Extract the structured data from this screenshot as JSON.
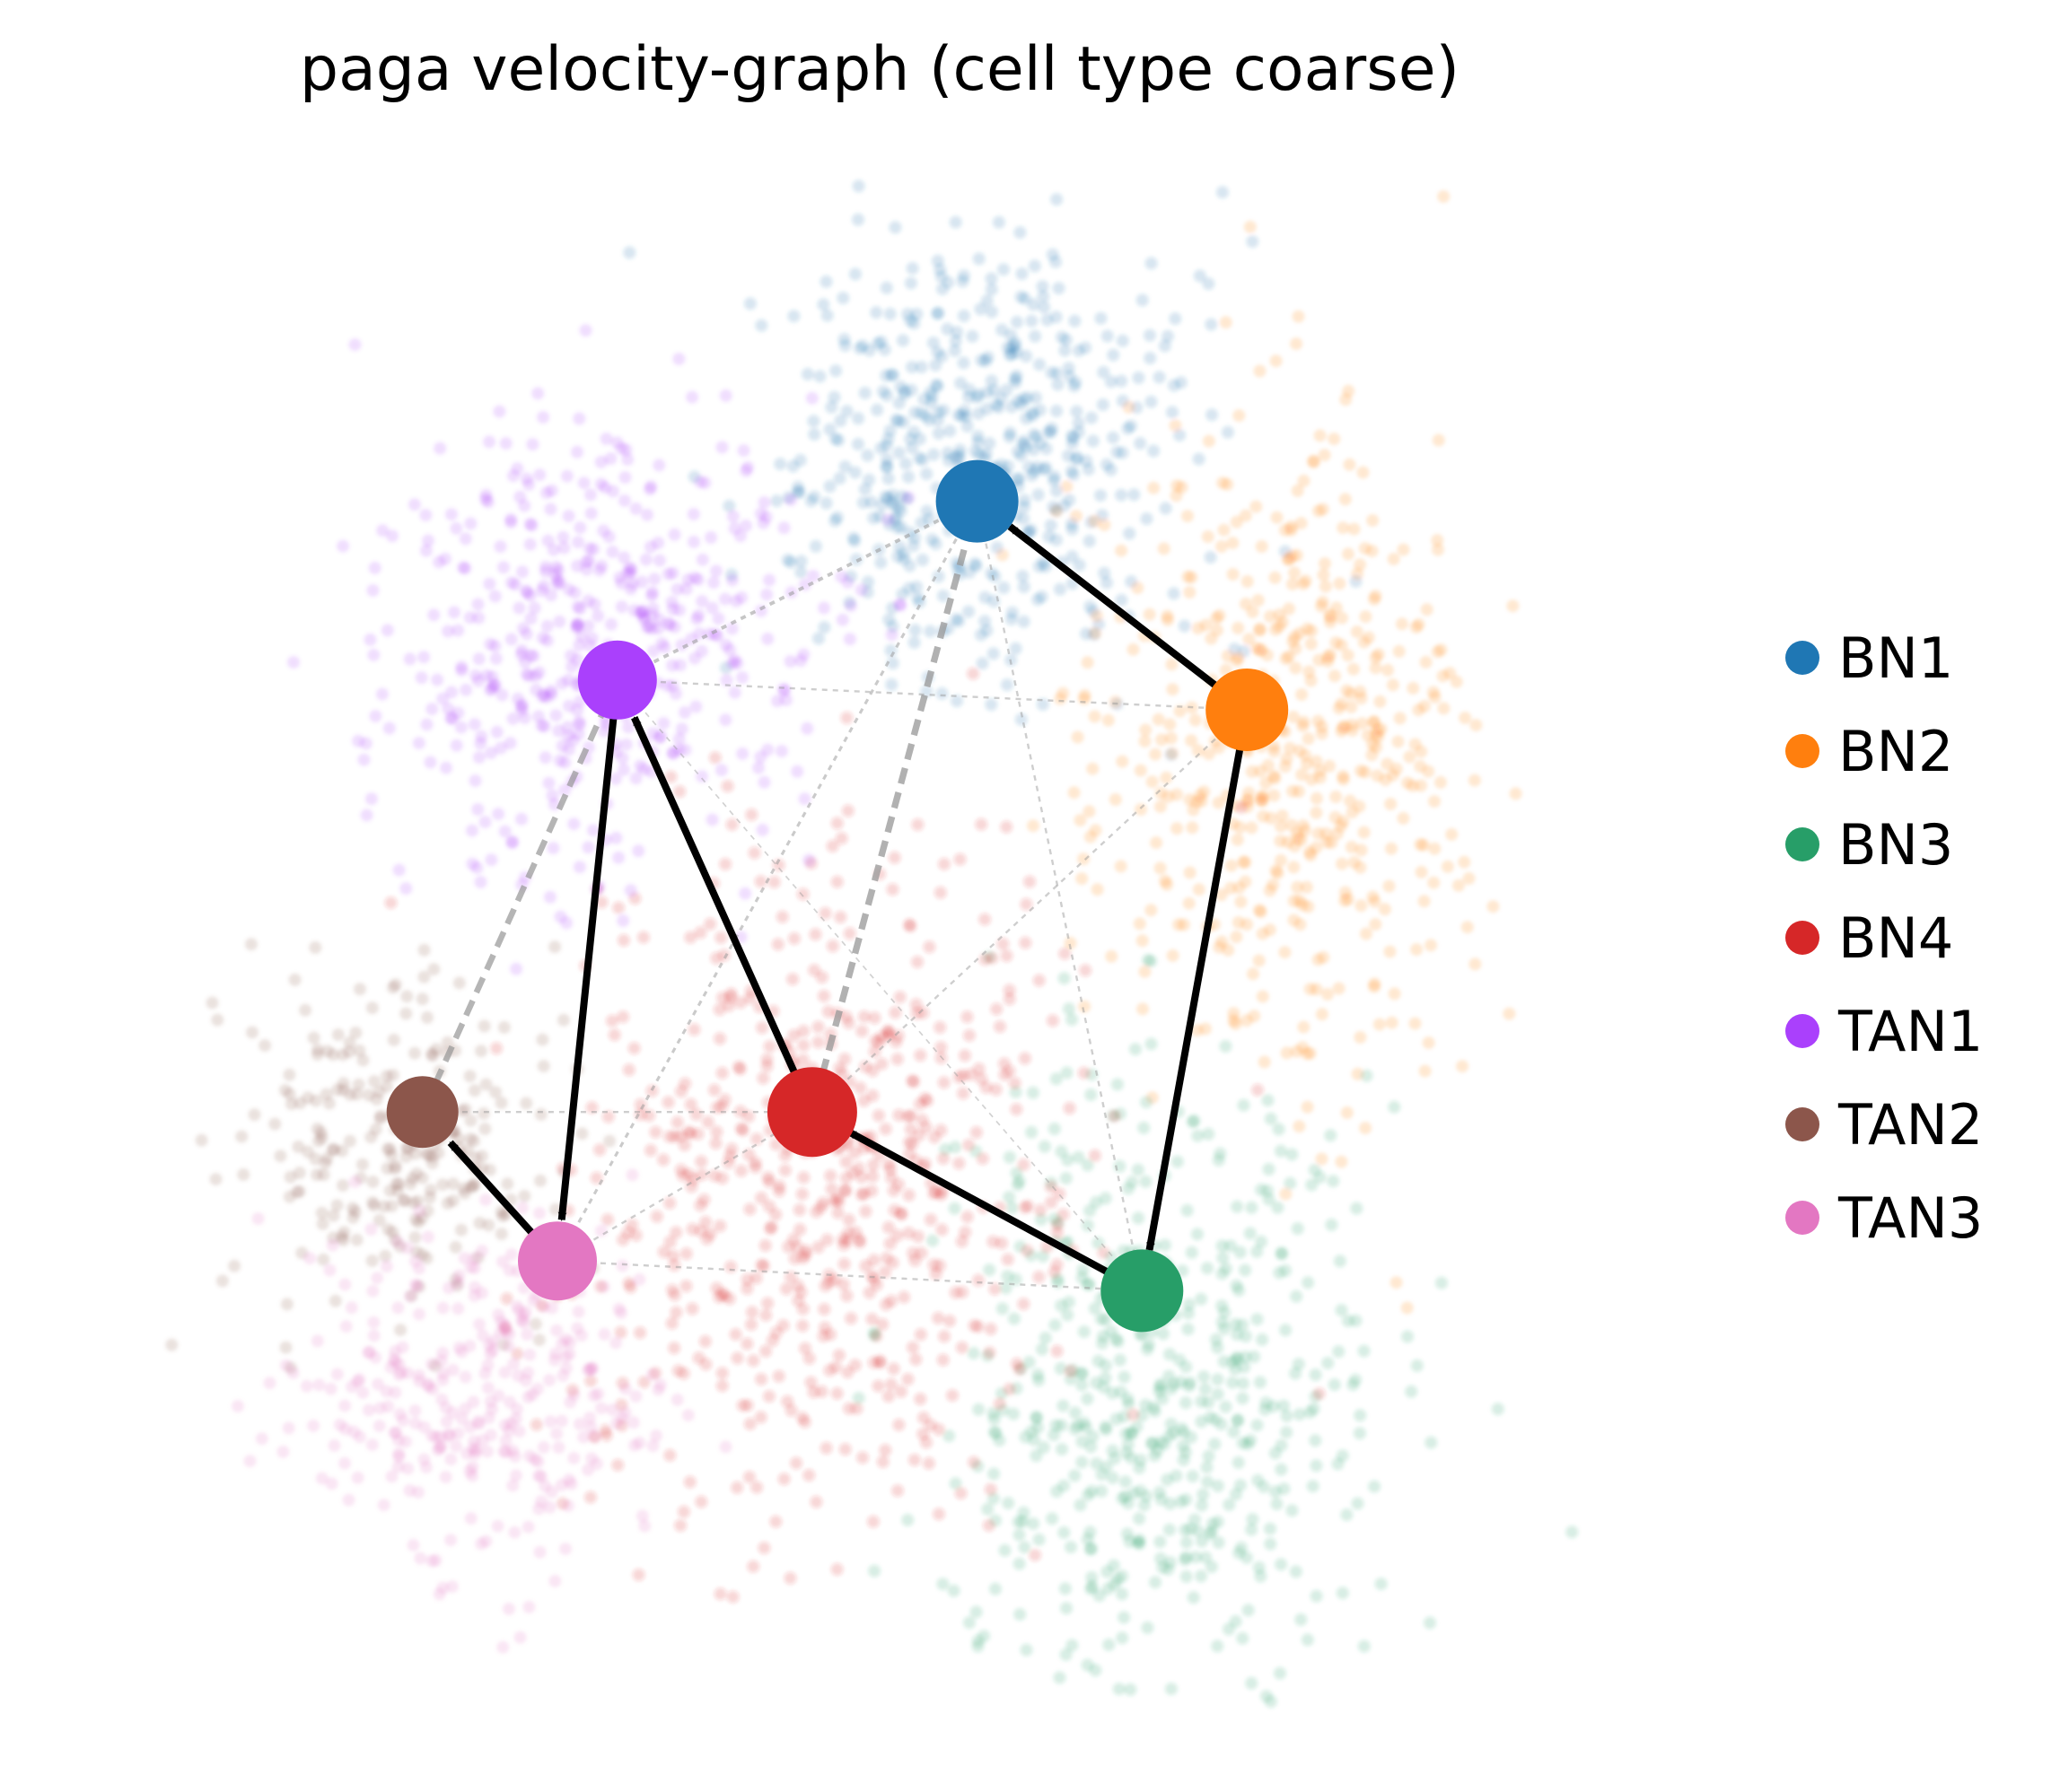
{
  "chart_data": {
    "type": "scatter",
    "title": "paga velocity-graph (cell type coarse)",
    "xlabel": "",
    "ylabel": "",
    "grid": false,
    "axes_visible": false,
    "legend_position": "right",
    "clusters": [
      {
        "name": "BN1",
        "color": "#1f77b4",
        "x": 0.58,
        "y": 0.79
      },
      {
        "name": "BN2",
        "color": "#ff7f0e",
        "x": 0.76,
        "y": 0.65
      },
      {
        "name": "BN3",
        "color": "#279e68",
        "x": 0.69,
        "y": 0.26
      },
      {
        "name": "BN4",
        "color": "#d62728",
        "x": 0.47,
        "y": 0.38
      },
      {
        "name": "TAN1",
        "color": "#aa40fc",
        "x": 0.34,
        "y": 0.67
      },
      {
        "name": "TAN2",
        "color": "#8c564b",
        "x": 0.21,
        "y": 0.38
      },
      {
        "name": "TAN3",
        "color": "#e377c2",
        "x": 0.3,
        "y": 0.28
      }
    ],
    "directed_edges": [
      {
        "from": "BN2",
        "to": "BN1"
      },
      {
        "from": "BN2",
        "to": "BN3"
      },
      {
        "from": "BN3",
        "to": "BN4"
      },
      {
        "from": "BN4",
        "to": "TAN1"
      },
      {
        "from": "TAN1",
        "to": "TAN3"
      },
      {
        "from": "TAN3",
        "to": "TAN2"
      }
    ],
    "undirected_edges": [
      {
        "from": "BN1",
        "to": "BN4",
        "weight": 0.9
      },
      {
        "from": "TAN1",
        "to": "TAN2",
        "weight": 0.8
      },
      {
        "from": "BN1",
        "to": "TAN1",
        "weight": 0.4
      },
      {
        "from": "BN1",
        "to": "TAN3",
        "weight": 0.3
      },
      {
        "from": "BN1",
        "to": "BN3",
        "weight": 0.2
      },
      {
        "from": "BN2",
        "to": "TAN1",
        "weight": 0.2
      },
      {
        "from": "BN2",
        "to": "BN4",
        "weight": 0.2
      },
      {
        "from": "BN4",
        "to": "TAN2",
        "weight": 0.2
      },
      {
        "from": "BN4",
        "to": "TAN3",
        "weight": 0.2
      },
      {
        "from": "TAN3",
        "to": "BN3",
        "weight": 0.2
      },
      {
        "from": "BN4",
        "to": "BN3",
        "weight": 0.2
      },
      {
        "from": "TAN1",
        "to": "BN3",
        "weight": 0.1
      }
    ]
  }
}
